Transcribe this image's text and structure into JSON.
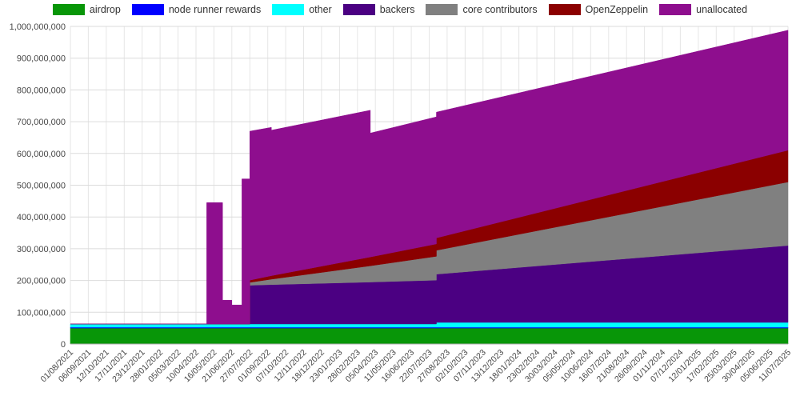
{
  "page": {
    "background": "#ffffff"
  },
  "chart_data": {
    "type": "area",
    "stacked": true,
    "title": "",
    "legend_position": "top",
    "grid": true,
    "ylim": [
      0,
      1000000000
    ],
    "y_max_millions": 1000,
    "y_tick_labels": [
      "0",
      "100,000,000",
      "200,000,000",
      "300,000,000",
      "400,000,000",
      "500,000,000",
      "600,000,000",
      "700,000,000",
      "800,000,000",
      "900,000,000",
      "1,000,000,000"
    ],
    "x_tick_labels": [
      "01/08/2021",
      "06/09/2021",
      "12/10/2021",
      "17/11/2021",
      "23/12/2021",
      "28/01/2022",
      "05/03/2022",
      "10/04/2022",
      "16/05/2022",
      "21/06/2022",
      "27/07/2022",
      "01/09/2022",
      "07/10/2022",
      "12/11/2022",
      "18/12/2022",
      "23/01/2023",
      "28/02/2023",
      "05/04/2023",
      "11/05/2023",
      "16/06/2023",
      "22/07/2023",
      "27/08/2023",
      "02/10/2023",
      "07/11/2023",
      "13/12/2023",
      "18/01/2024",
      "23/02/2024",
      "30/03/2024",
      "05/05/2024",
      "10/06/2024",
      "16/07/2024",
      "21/08/2024",
      "26/09/2024",
      "01/11/2024",
      "07/12/2024",
      "12/01/2025",
      "17/02/2025",
      "25/03/2025",
      "30/04/2025",
      "05/06/2025",
      "11/07/2025"
    ],
    "series": [
      {
        "name": "airdrop",
        "color": "#089608"
      },
      {
        "name": "node runner rewards",
        "color": "#0000FF"
      },
      {
        "name": "other",
        "color": "#00FFFF"
      },
      {
        "name": "backers",
        "color": "#4B0082"
      },
      {
        "name": "core contributors",
        "color": "#808080"
      },
      {
        "name": "OpenZeppelin",
        "color": "#8B0000"
      },
      {
        "name": "unallocated",
        "color": "#8E0E8E"
      }
    ],
    "samples_note": "t = fraction along x-axis from 01/08/2021 to 11/07/2025; v = series values in millions of tokens, same order as series[]",
    "samples": [
      {
        "t": 0.0,
        "v": [
          50,
          3,
          10,
          0,
          0,
          0,
          0
        ]
      },
      {
        "t": 0.19,
        "v": [
          50,
          3,
          10,
          0,
          0,
          0,
          0
        ]
      },
      {
        "t": 0.19,
        "v": [
          50,
          3,
          10,
          0,
          0,
          0,
          382
        ]
      },
      {
        "t": 0.212,
        "v": [
          50,
          3,
          10,
          0,
          0,
          0,
          382
        ]
      },
      {
        "t": 0.212,
        "v": [
          50,
          3,
          10,
          0,
          0,
          0,
          75
        ]
      },
      {
        "t": 0.225,
        "v": [
          50,
          3,
          10,
          0,
          0,
          0,
          75
        ]
      },
      {
        "t": 0.225,
        "v": [
          50,
          3,
          10,
          0,
          0,
          0,
          60
        ]
      },
      {
        "t": 0.239,
        "v": [
          50,
          3,
          10,
          0,
          0,
          0,
          60
        ]
      },
      {
        "t": 0.239,
        "v": [
          50,
          3,
          10,
          0,
          0,
          0,
          457
        ]
      },
      {
        "t": 0.25,
        "v": [
          50,
          3,
          10,
          0,
          0,
          0,
          457
        ]
      },
      {
        "t": 0.25,
        "v": [
          50,
          3,
          10,
          122,
          9,
          7,
          469
        ]
      },
      {
        "t": 0.28,
        "v": [
          50,
          3,
          10,
          124,
          17,
          11,
          467
        ]
      },
      {
        "t": 0.28,
        "v": [
          50,
          3,
          10,
          124,
          17,
          11,
          458
        ]
      },
      {
        "t": 0.418,
        "v": [
          50,
          3,
          10,
          132,
          51,
          28,
          462
        ]
      },
      {
        "t": 0.418,
        "v": [
          50,
          3,
          10,
          132,
          51,
          28,
          390
        ]
      },
      {
        "t": 0.51,
        "v": [
          50,
          3,
          10,
          138,
          75,
          39,
          400
        ]
      },
      {
        "t": 0.51,
        "v": [
          50,
          3,
          15,
          152,
          75,
          39,
          396
        ]
      },
      {
        "t": 1.0,
        "v": [
          50,
          3,
          15,
          242,
          200,
          100,
          378
        ]
      }
    ]
  }
}
